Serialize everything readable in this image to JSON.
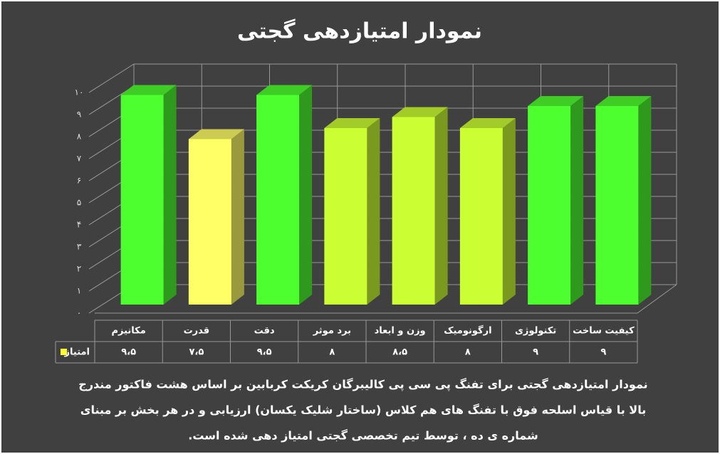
{
  "chart_data": {
    "type": "bar3d",
    "title": "نمودار امتیازدهی گجتی",
    "categories": [
      "مکانیزم",
      "قدرت",
      "دقت",
      "برد موثر",
      "وزن و ابعاد",
      "ارگونومیک",
      "تکنولوژی",
      "کیفیت ساخت"
    ],
    "series": [
      {
        "name": "امتیاز",
        "color": "#ffff33",
        "colors": [
          "#4dff2e",
          "#ffff66",
          "#4dff2e",
          "#ccff33",
          "#ccff33",
          "#ccff33",
          "#4dff2e",
          "#4dff2e"
        ],
        "values": [
          9.5,
          7.5,
          9.5,
          8,
          8.5,
          8,
          9,
          9
        ],
        "value_labels": [
          "۹،۵",
          "۷،۵",
          "۹،۵",
          "۸",
          "۸،۵",
          "۸",
          "۹",
          "۹"
        ]
      }
    ],
    "ylim": [
      0,
      10
    ],
    "yticks": [
      {
        "value": 0,
        "label": "٠"
      },
      {
        "value": 1,
        "label": "۱"
      },
      {
        "value": 2,
        "label": "۲"
      },
      {
        "value": 3,
        "label": "۳"
      },
      {
        "value": 4,
        "label": "۴"
      },
      {
        "value": 5,
        "label": "۵"
      },
      {
        "value": 6,
        "label": "۶"
      },
      {
        "value": 7,
        "label": "۷"
      },
      {
        "value": 8,
        "label": "۸"
      },
      {
        "value": 9,
        "label": "۹"
      },
      {
        "value": 10,
        "label": "۱۰"
      }
    ],
    "grid": true,
    "caption_lines": [
      "نمودار امتیازدهی گجتی برای تفنگ پی سی پی کالیبرگان کریکت کربابین بر اساس هشت فاکتور مندرج",
      "بالا با قیاس اسلحه فوق با تفنگ های هم کلاس (ساختار شلیک یکسان) ارزیابی و در هر بخش بر مبنای",
      "شماره ی ده ، توسط تیم تخصصی گجتی امتیاز دهی شده است."
    ]
  }
}
